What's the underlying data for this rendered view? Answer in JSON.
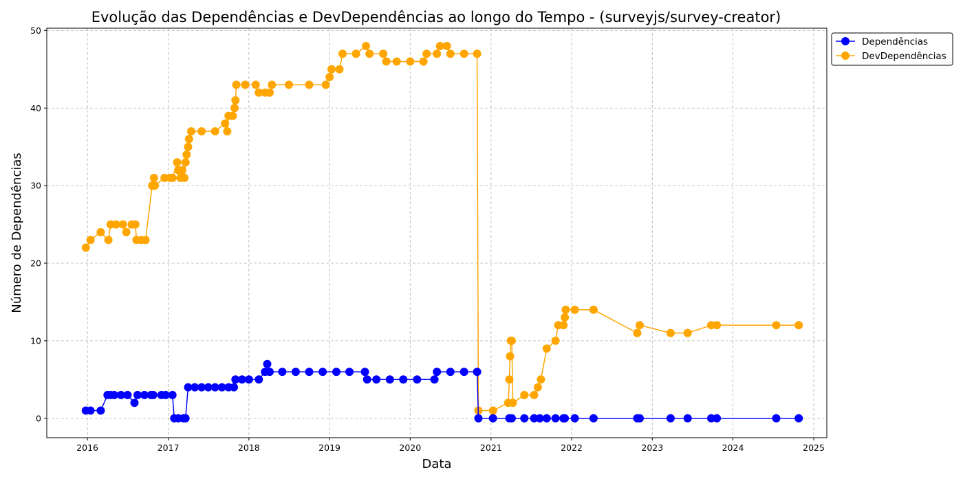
{
  "chart_data": {
    "type": "line",
    "title": "Evolução das Dependências e DevDependências ao longo do Tempo - (surveyjs/survey-creator)",
    "xlabel": "Data",
    "ylabel": "Número de Dependências",
    "xlim": [
      "2015-07-01",
      "2025-03-01"
    ],
    "ylim": [
      -2.5,
      50.3
    ],
    "x_ticks": [
      "2016",
      "2017",
      "2018",
      "2019",
      "2020",
      "2021",
      "2022",
      "2023",
      "2024",
      "2025"
    ],
    "y_ticks": [
      0,
      10,
      20,
      30,
      40,
      50
    ],
    "grid": true,
    "legend_position": "top-right, outside",
    "colors": {
      "Dependências": "#0000ff",
      "DevDependências": "#ffa500"
    },
    "series": [
      {
        "name": "Dependências",
        "color": "#0000ff",
        "points": [
          [
            "2015-12-25",
            1
          ],
          [
            "2016-01-15",
            1
          ],
          [
            "2016-03-01",
            1
          ],
          [
            "2016-04-01",
            3
          ],
          [
            "2016-04-15",
            3
          ],
          [
            "2016-05-01",
            3
          ],
          [
            "2016-06-01",
            3
          ],
          [
            "2016-07-01",
            3
          ],
          [
            "2016-08-01",
            2
          ],
          [
            "2016-08-15",
            3
          ],
          [
            "2016-09-15",
            3
          ],
          [
            "2016-10-15",
            3
          ],
          [
            "2016-10-25",
            3
          ],
          [
            "2016-12-01",
            3
          ],
          [
            "2016-12-20",
            3
          ],
          [
            "2017-01-20",
            3
          ],
          [
            "2017-01-28",
            0
          ],
          [
            "2017-02-15",
            0
          ],
          [
            "2017-03-10",
            0
          ],
          [
            "2017-03-20",
            0
          ],
          [
            "2017-04-01",
            4
          ],
          [
            "2017-05-01",
            4
          ],
          [
            "2017-06-01",
            4
          ],
          [
            "2017-07-01",
            4
          ],
          [
            "2017-08-01",
            4
          ],
          [
            "2017-09-01",
            4
          ],
          [
            "2017-10-01",
            4
          ],
          [
            "2017-10-25",
            4
          ],
          [
            "2017-11-01",
            5
          ],
          [
            "2017-12-01",
            5
          ],
          [
            "2018-01-01",
            5
          ],
          [
            "2018-02-15",
            5
          ],
          [
            "2018-03-15",
            6
          ],
          [
            "2018-03-25",
            7
          ],
          [
            "2018-04-05",
            6
          ],
          [
            "2018-06-01",
            6
          ],
          [
            "2018-08-01",
            6
          ],
          [
            "2018-10-01",
            6
          ],
          [
            "2018-12-01",
            6
          ],
          [
            "2019-02-01",
            6
          ],
          [
            "2019-04-01",
            6
          ],
          [
            "2019-06-10",
            6
          ],
          [
            "2019-06-20",
            5
          ],
          [
            "2019-08-01",
            5
          ],
          [
            "2019-10-01",
            5
          ],
          [
            "2019-12-01",
            5
          ],
          [
            "2020-02-01",
            5
          ],
          [
            "2020-04-20",
            5
          ],
          [
            "2020-05-01",
            6
          ],
          [
            "2020-07-01",
            6
          ],
          [
            "2020-09-01",
            6
          ],
          [
            "2020-10-30",
            6
          ],
          [
            "2020-11-05",
            0
          ],
          [
            "2021-01-10",
            0
          ],
          [
            "2021-03-25",
            0
          ],
          [
            "2021-04-05",
            0
          ],
          [
            "2021-06-01",
            0
          ],
          [
            "2021-07-15",
            0
          ],
          [
            "2021-08-10",
            0
          ],
          [
            "2021-09-10",
            0
          ],
          [
            "2021-10-20",
            0
          ],
          [
            "2021-11-25",
            0
          ],
          [
            "2021-12-01",
            0
          ],
          [
            "2022-01-15",
            0
          ],
          [
            "2022-04-10",
            0
          ],
          [
            "2022-10-25",
            0
          ],
          [
            "2022-11-05",
            0
          ],
          [
            "2023-03-25",
            0
          ],
          [
            "2023-06-10",
            0
          ],
          [
            "2023-09-25",
            0
          ],
          [
            "2023-10-20",
            0
          ],
          [
            "2024-07-15",
            0
          ],
          [
            "2024-10-25",
            0
          ]
        ]
      },
      {
        "name": "DevDependências",
        "color": "#ffa500",
        "points": [
          [
            "2015-12-25",
            22
          ],
          [
            "2016-01-15",
            23
          ],
          [
            "2016-03-01",
            24
          ],
          [
            "2016-04-05",
            23
          ],
          [
            "2016-04-15",
            25
          ],
          [
            "2016-05-10",
            25
          ],
          [
            "2016-06-10",
            25
          ],
          [
            "2016-06-25",
            24
          ],
          [
            "2016-07-20",
            25
          ],
          [
            "2016-08-05",
            25
          ],
          [
            "2016-08-10",
            23
          ],
          [
            "2016-09-01",
            23
          ],
          [
            "2016-09-20",
            23
          ],
          [
            "2016-10-20",
            30
          ],
          [
            "2016-10-28",
            31
          ],
          [
            "2016-11-01",
            30
          ],
          [
            "2016-12-15",
            31
          ],
          [
            "2017-01-10",
            31
          ],
          [
            "2017-01-20",
            31
          ],
          [
            "2017-02-10",
            33
          ],
          [
            "2017-02-15",
            32
          ],
          [
            "2017-02-25",
            31
          ],
          [
            "2017-03-05",
            32
          ],
          [
            "2017-03-15",
            31
          ],
          [
            "2017-03-20",
            33
          ],
          [
            "2017-03-25",
            34
          ],
          [
            "2017-04-01",
            35
          ],
          [
            "2017-04-05",
            36
          ],
          [
            "2017-04-15",
            37
          ],
          [
            "2017-06-01",
            37
          ],
          [
            "2017-08-01",
            37
          ],
          [
            "2017-09-15",
            38
          ],
          [
            "2017-09-25",
            37
          ],
          [
            "2017-10-01",
            39
          ],
          [
            "2017-10-20",
            39
          ],
          [
            "2017-10-28",
            40
          ],
          [
            "2017-11-01",
            41
          ],
          [
            "2017-11-05",
            43
          ],
          [
            "2017-12-15",
            43
          ],
          [
            "2018-02-01",
            43
          ],
          [
            "2018-02-15",
            42
          ],
          [
            "2018-03-15",
            42
          ],
          [
            "2018-04-05",
            42
          ],
          [
            "2018-04-15",
            43
          ],
          [
            "2018-07-01",
            43
          ],
          [
            "2018-10-01",
            43
          ],
          [
            "2018-12-15",
            43
          ],
          [
            "2019-01-01",
            44
          ],
          [
            "2019-01-10",
            45
          ],
          [
            "2019-02-15",
            45
          ],
          [
            "2019-03-01",
            47
          ],
          [
            "2019-05-01",
            47
          ],
          [
            "2019-06-15",
            48
          ],
          [
            "2019-07-01",
            47
          ],
          [
            "2019-09-01",
            47
          ],
          [
            "2019-09-15",
            46
          ],
          [
            "2019-11-01",
            46
          ],
          [
            "2020-01-01",
            46
          ],
          [
            "2020-03-01",
            46
          ],
          [
            "2020-03-15",
            47
          ],
          [
            "2020-05-01",
            47
          ],
          [
            "2020-05-15",
            48
          ],
          [
            "2020-06-15",
            48
          ],
          [
            "2020-07-01",
            47
          ],
          [
            "2020-09-01",
            47
          ],
          [
            "2020-10-30",
            47
          ],
          [
            "2020-11-05",
            1
          ],
          [
            "2021-01-10",
            1
          ],
          [
            "2021-03-20",
            2
          ],
          [
            "2021-03-25",
            5
          ],
          [
            "2021-03-28",
            8
          ],
          [
            "2021-04-01",
            10
          ],
          [
            "2021-04-05",
            10
          ],
          [
            "2021-04-10",
            2
          ],
          [
            "2021-06-01",
            3
          ],
          [
            "2021-07-15",
            3
          ],
          [
            "2021-08-01",
            4
          ],
          [
            "2021-08-15",
            5
          ],
          [
            "2021-09-10",
            9
          ],
          [
            "2021-10-20",
            10
          ],
          [
            "2021-11-01",
            12
          ],
          [
            "2021-11-25",
            12
          ],
          [
            "2021-12-01",
            13
          ],
          [
            "2021-12-05",
            14
          ],
          [
            "2022-01-15",
            14
          ],
          [
            "2022-04-10",
            14
          ],
          [
            "2022-10-25",
            11
          ],
          [
            "2022-11-05",
            12
          ],
          [
            "2023-03-25",
            11
          ],
          [
            "2023-06-10",
            11
          ],
          [
            "2023-09-25",
            12
          ],
          [
            "2023-10-20",
            12
          ],
          [
            "2024-07-15",
            12
          ],
          [
            "2024-10-25",
            12
          ]
        ]
      }
    ]
  }
}
